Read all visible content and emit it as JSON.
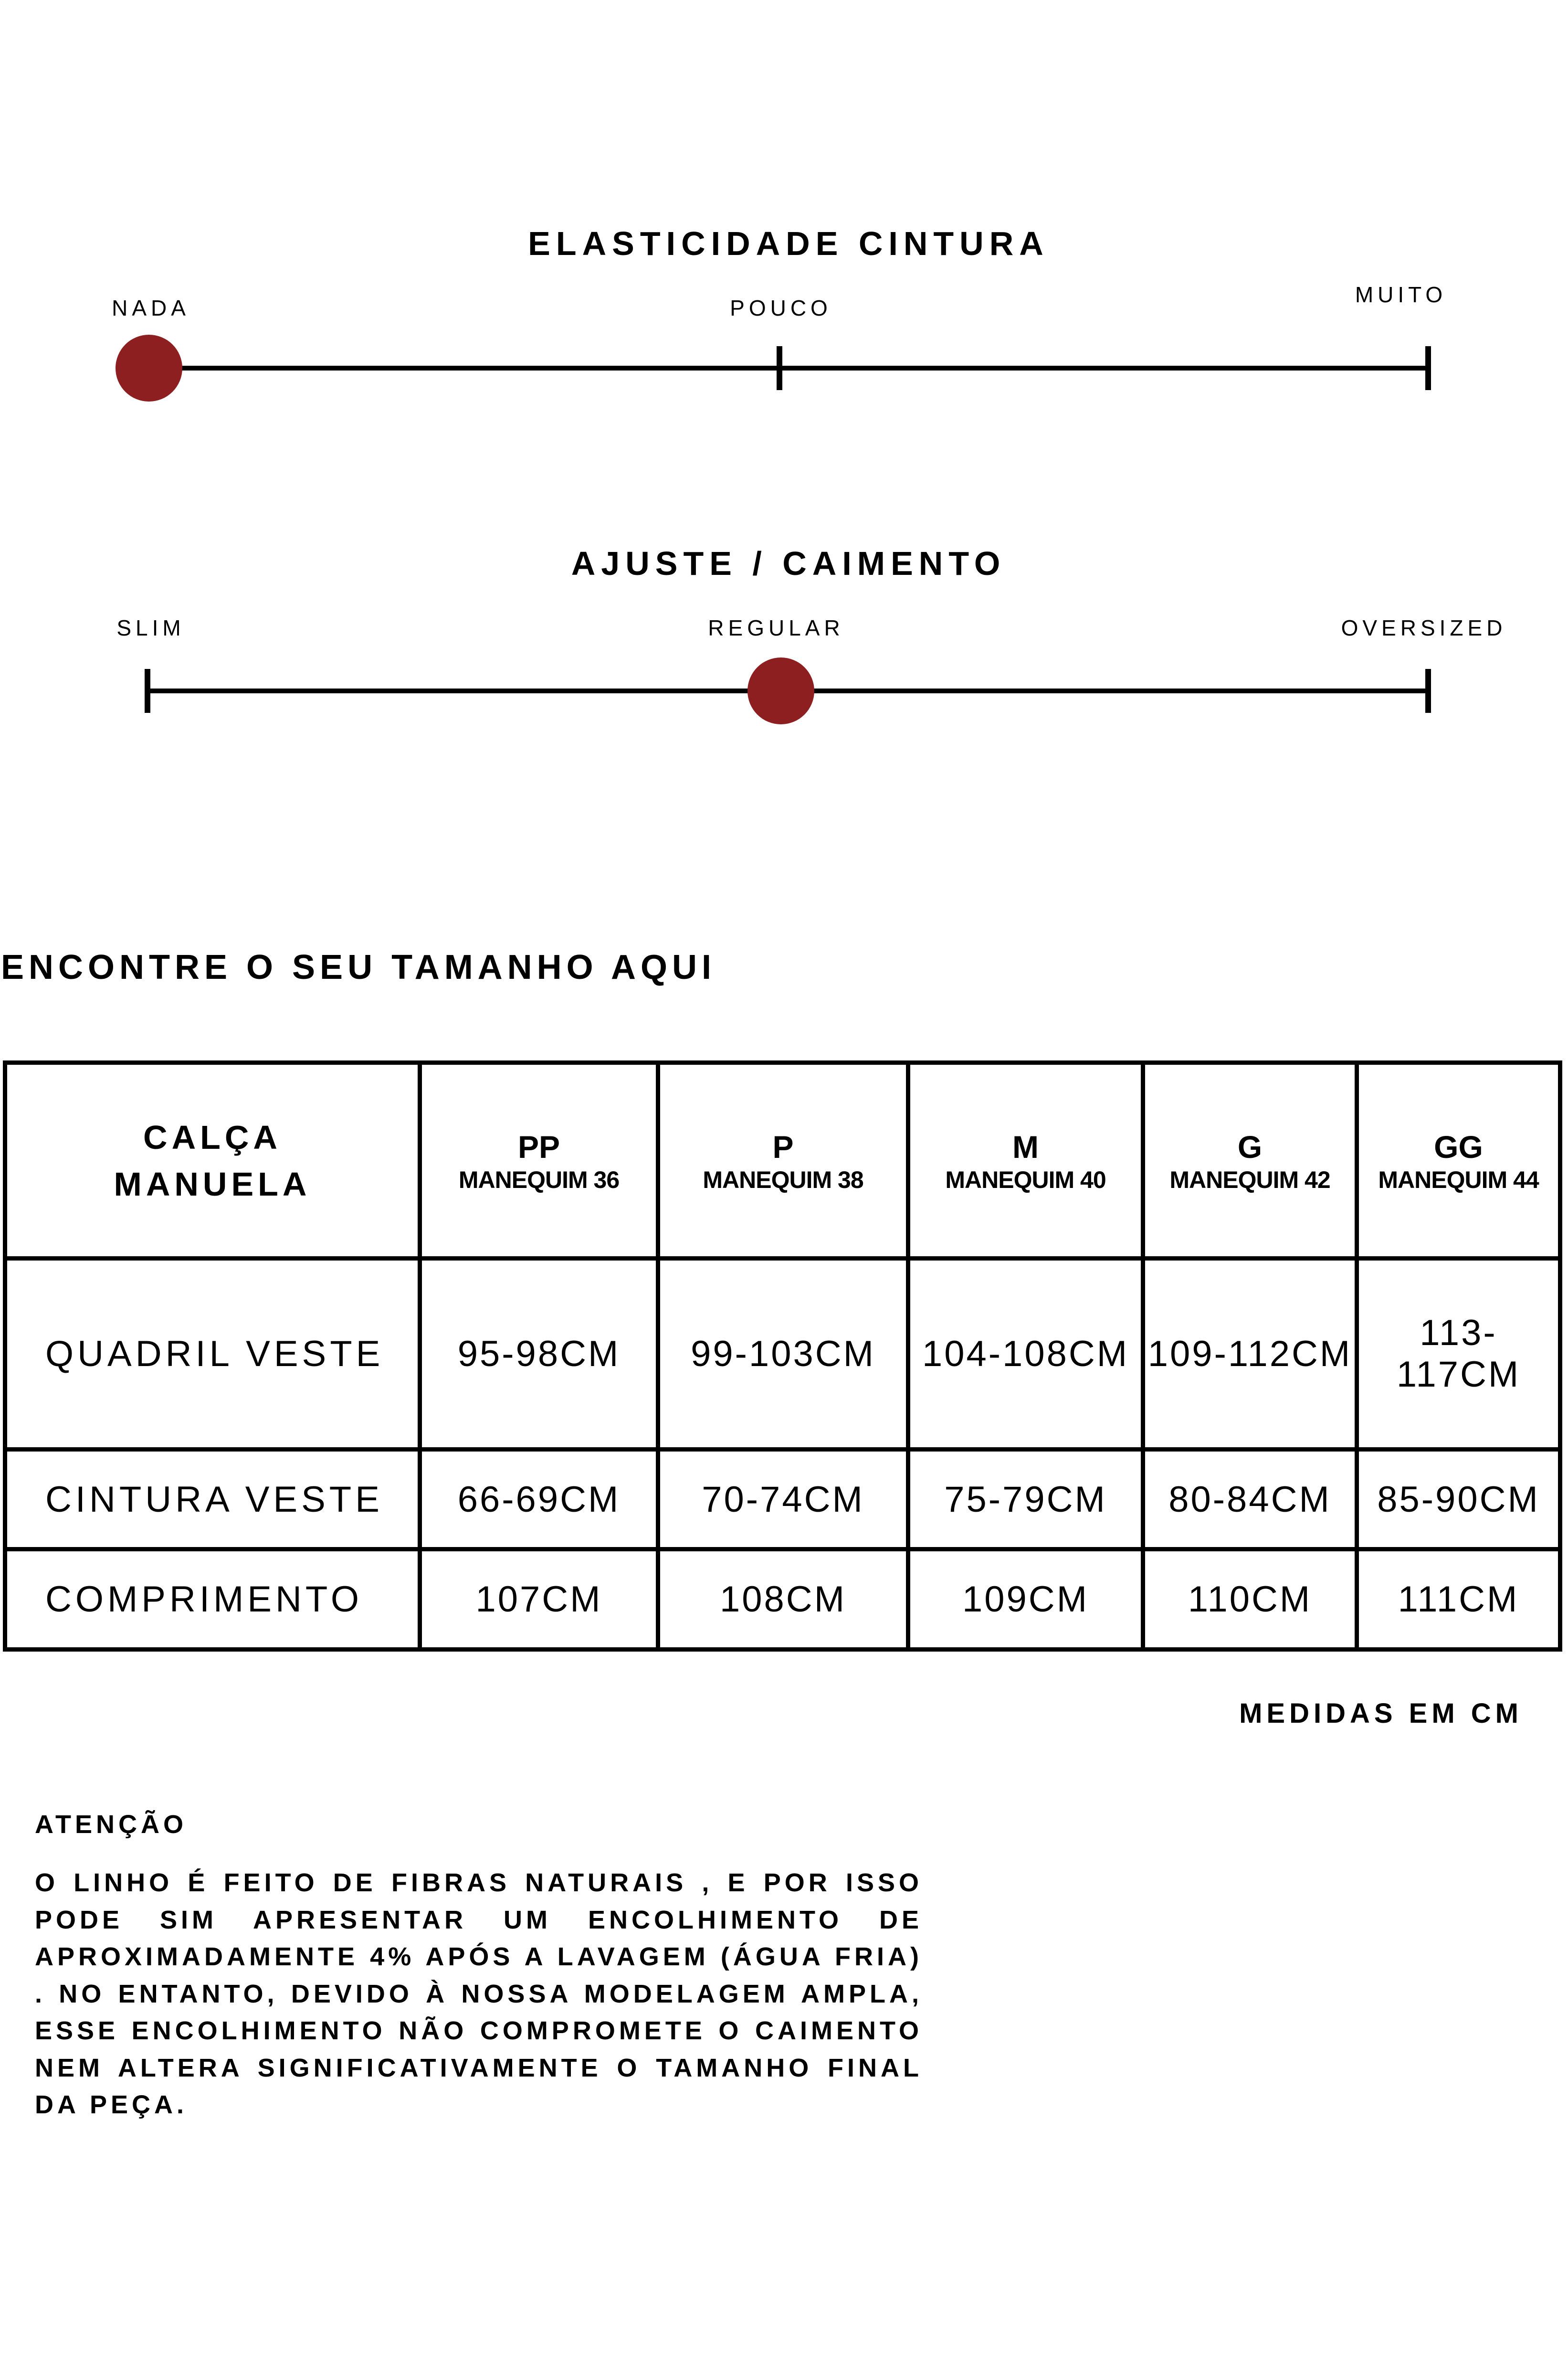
{
  "scales": [
    {
      "title": "ELASTICIDADE CINTURA",
      "labels": [
        "NADA",
        "POUCO",
        "MUITO"
      ],
      "selected_index": 0
    },
    {
      "title": "AJUSTE / CAIMENTO",
      "labels": [
        "SLIM",
        "REGULAR",
        "OVERSIZED"
      ],
      "selected_index": 1
    }
  ],
  "accent_color": "#8e1f20",
  "size_section_title": "ENCONTRE O SEU TAMANHO AQUI",
  "table": {
    "corner": [
      "CALÇA",
      "MANUELA"
    ],
    "columns": [
      {
        "size": "PP",
        "mannequin": "MANEQUIM 36"
      },
      {
        "size": "P",
        "mannequin": "MANEQUIM 38"
      },
      {
        "size": "M",
        "mannequin": "MANEQUIM 40"
      },
      {
        "size": "G",
        "mannequin": "MANEQUIM 42"
      },
      {
        "size": "GG",
        "mannequin": "MANEQUIM 44"
      }
    ],
    "rows": [
      {
        "label": "QUADRIL VESTE",
        "values": [
          "95-98CM",
          "99-103CM",
          "104-108CM",
          "109-112CM",
          "113-117CM"
        ]
      },
      {
        "label": "CINTURA VESTE",
        "values": [
          "66-69CM",
          "70-74CM",
          "75-79CM",
          "80-84CM",
          "85-90CM"
        ]
      },
      {
        "label": "COMPRIMENTO",
        "values": [
          "107CM",
          "108CM",
          "109CM",
          "110CM",
          "111CM"
        ]
      }
    ]
  },
  "units_note": "MEDIDAS EM CM",
  "notice": {
    "title": "ATENÇÃO",
    "text": "O LINHO É FEITO DE FIBRAS NATURAIS , E POR ISSO PODE SIM APRESENTAR UM ENCOLHIMENTO DE APROXIMADAMENTE 4% APÓS A LAVAGEM (ÁGUA FRIA) . NO ENTANTO, DEVIDO À NOSSA MODELAGEM AMPLA, ESSE ENCOLHIMENTO NÃO COMPROMETE O CAIMENTO NEM ALTERA SIGNIFICATIVAMENTE O TAMANHO FINAL DA PEÇA."
  }
}
